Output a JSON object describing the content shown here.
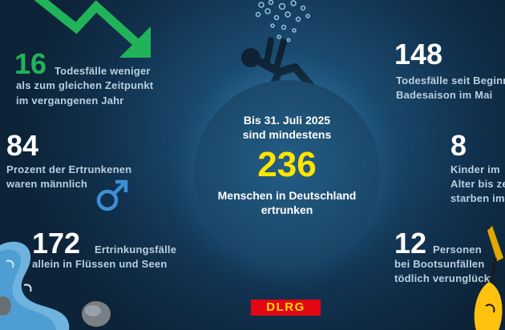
{
  "stats": {
    "deaths_fewer": {
      "number": "16",
      "line1": "Todesfälle weniger",
      "line2": "als zum gleichen Zeitpunkt",
      "line3": "im vergangenen Jahr"
    },
    "percent_male": {
      "number": "84",
      "line1": "Prozent der Ertrunkenen",
      "line2": "waren männlich"
    },
    "rivers": {
      "number": "172",
      "inline": "Ertrinkungsfälle",
      "line2": "allein in Flüssen und Seen"
    },
    "since_season": {
      "number": "148",
      "line1": "Todesfälle seit Beginn",
      "line2": "Badesaison im Mai"
    },
    "children": {
      "number": "8",
      "line1": "Kinder im",
      "line2": "Alter bis ze",
      "line3": "starben im"
    },
    "boats": {
      "number": "12",
      "inline": "Personen",
      "line2": "bei Bootsunfällen",
      "line3": "tödlich verunglückt"
    }
  },
  "center": {
    "line1": "Bis 31. Juli 2025",
    "line2": "sind mindestens",
    "number": "236",
    "line3": "Menschen in Deutschland",
    "line4": "ertrunken"
  },
  "logo": {
    "text": "DLRG"
  },
  "colors": {
    "green": "#21b35a",
    "yellow": "#ffe500",
    "male_blue": "#3d8fd6",
    "logo_red": "#e30613"
  },
  "icons": [
    "down-trend-arrow-icon",
    "male-symbol-icon",
    "drowning-person-icon",
    "river-icon",
    "paddle-icon"
  ]
}
